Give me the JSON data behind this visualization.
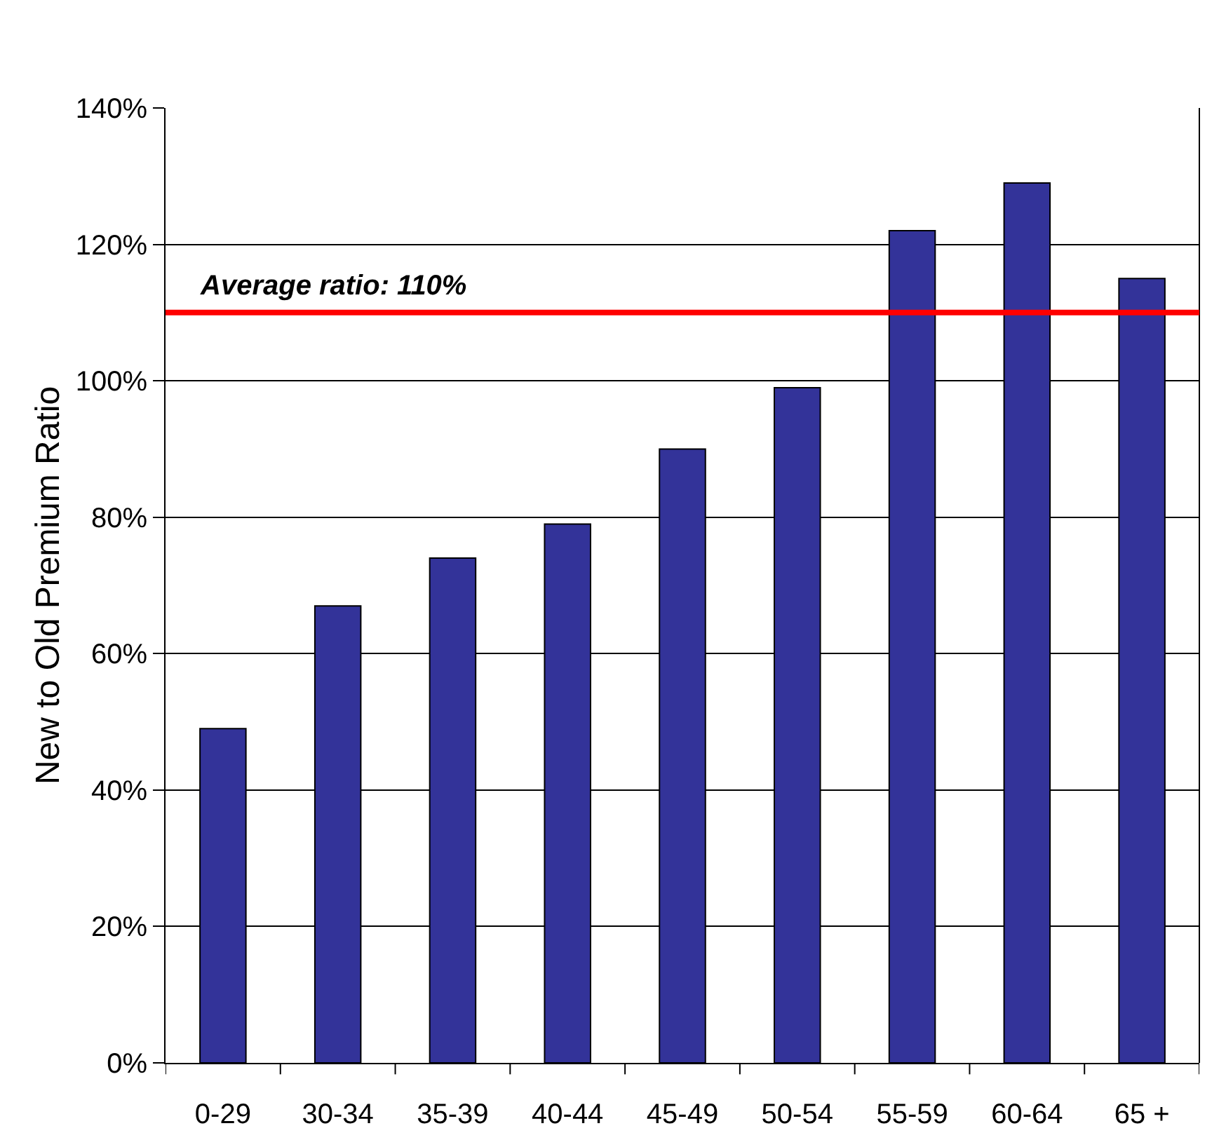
{
  "chart_data": {
    "type": "bar",
    "ylabel": "New to Old Premium Ratio",
    "categories": [
      "0-29",
      "30-34",
      "35-39",
      "40-44",
      "45-49",
      "50-54",
      "55-59",
      "60-64",
      "65 +"
    ],
    "values": [
      49,
      67,
      74,
      79,
      90,
      99,
      122,
      129,
      115
    ],
    "color": "#333399",
    "ylim": [
      0,
      140
    ],
    "yticks": [
      {
        "value": 0,
        "label": "0%"
      },
      {
        "value": 20,
        "label": "20%"
      },
      {
        "value": 40,
        "label": "40%"
      },
      {
        "value": 60,
        "label": "60%"
      },
      {
        "value": 80,
        "label": "80%"
      },
      {
        "value": 100,
        "label": "100%"
      },
      {
        "value": 120,
        "label": "120%"
      },
      {
        "value": 140,
        "label": "140%"
      }
    ],
    "grid": "y",
    "ref_lines": [
      {
        "axis": "y",
        "value": 110,
        "label": "Average ratio: 110%",
        "color": "#ff0000"
      }
    ]
  }
}
